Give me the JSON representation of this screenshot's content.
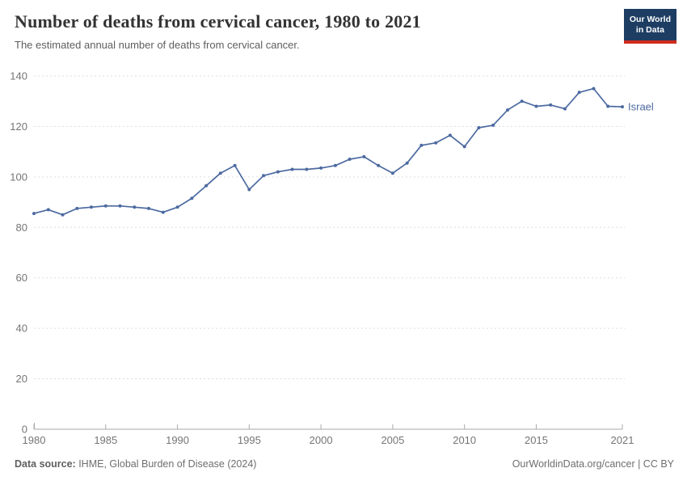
{
  "header": {
    "title": "Number of deaths from cervical cancer, 1980 to 2021",
    "subtitle": "The estimated annual number of deaths from cervical cancer."
  },
  "logo": {
    "line1": "Our World",
    "line2": "in Data"
  },
  "footer": {
    "source_label": "Data source:",
    "source_value": " IHME, Global Burden of Disease (2024)",
    "credit": "OurWorldinData.org/cancer | CC BY"
  },
  "colors": {
    "line": "#4c6aa0",
    "grid": "#dedede",
    "axis": "#a9a9a9",
    "tick_label": "#757575",
    "logo_bg": "#1d3d63",
    "logo_bar": "#d12b1e"
  },
  "chart_data": {
    "type": "line",
    "title": "Number of deaths from cervical cancer, 1980 to 2021",
    "subtitle": "The estimated annual number of deaths from cervical cancer.",
    "entity_label": "Israel",
    "xlim": [
      1980,
      2021
    ],
    "ylim": [
      0,
      140
    ],
    "xticks": [
      1980,
      1985,
      1990,
      1995,
      2000,
      2005,
      2010,
      2015,
      2021
    ],
    "yticks": [
      0,
      20,
      40,
      60,
      80,
      100,
      120,
      140
    ],
    "grid": "horizontal-dashed",
    "legend_position": "end-of-line",
    "x": [
      1980,
      1981,
      1982,
      1983,
      1984,
      1985,
      1986,
      1987,
      1988,
      1989,
      1990,
      1991,
      1992,
      1993,
      1994,
      1995,
      1996,
      1997,
      1998,
      1999,
      2000,
      2001,
      2002,
      2003,
      2004,
      2005,
      2006,
      2007,
      2008,
      2009,
      2010,
      2011,
      2012,
      2013,
      2014,
      2015,
      2016,
      2017,
      2018,
      2019,
      2020,
      2021
    ],
    "series": [
      {
        "name": "Israel",
        "values": [
          85.5,
          87,
          85,
          87.5,
          88,
          88.5,
          88.5,
          88,
          87.5,
          86,
          88,
          91.5,
          96.5,
          101.5,
          104.5,
          95,
          100.5,
          102,
          103,
          103,
          103.5,
          104.5,
          107,
          108,
          104.5,
          101.5,
          105.5,
          112.5,
          113.5,
          116.5,
          112,
          119.5,
          120.5,
          126.5,
          130,
          128,
          128.5,
          127,
          133.5,
          135,
          128,
          127.8
        ]
      }
    ]
  }
}
